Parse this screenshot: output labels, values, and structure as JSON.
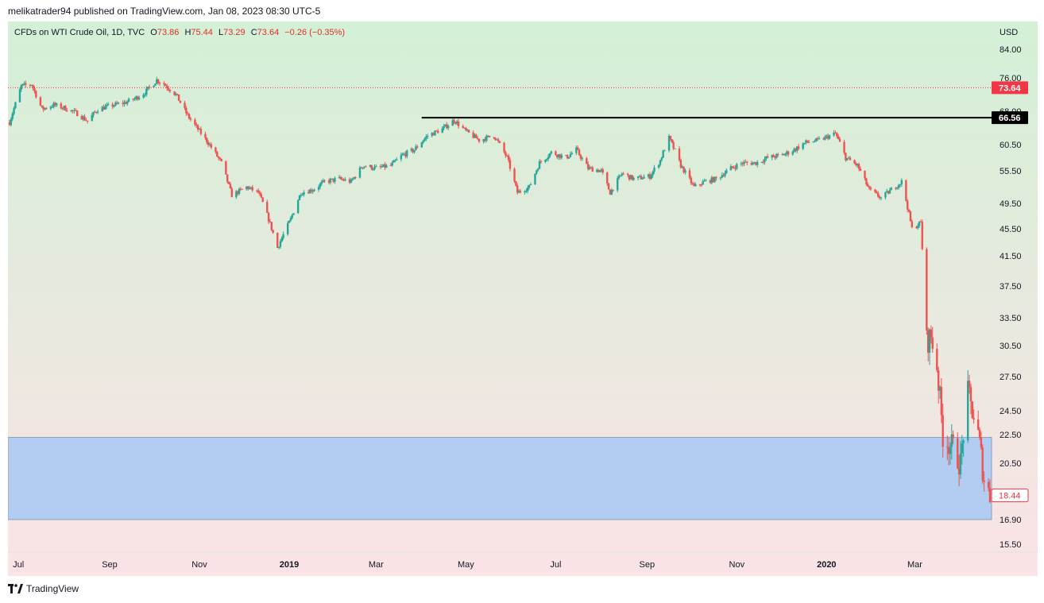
{
  "header": {
    "published_line": "melikatrader94 published on TradingView.com, Jan 08, 2023 08:30 UTC-5"
  },
  "legend": {
    "symbol": "CFDs on WTI Crude Oil, 1D, TVC",
    "open_label": "O",
    "open": "73.86",
    "high_label": "H",
    "high": "75.44",
    "low_label": "L",
    "low": "73.29",
    "close_label": "C",
    "close": "73.64",
    "change": "−0.26 (−0.35%)"
  },
  "footer": {
    "brand": "TradingView"
  },
  "colors": {
    "up": "#26a69a",
    "down": "#ef5350",
    "price_tag_red": "#f23645",
    "level_line": "#000000",
    "zone_fill": "#b3cdf2",
    "zone_border": "#7b8fb0",
    "bg_top": "#d3f0d6",
    "bg_bottom": "#fbe3e6"
  },
  "chart_data": {
    "type": "candlestick",
    "currency_label": "USD",
    "y_ticks": [
      84.0,
      76.0,
      68.0,
      60.5,
      55.5,
      49.5,
      45.5,
      41.5,
      37.5,
      33.5,
      30.5,
      27.5,
      24.5,
      22.5,
      20.5,
      16.9,
      15.5
    ],
    "y_tick_labels": [
      "84.00",
      "76.00",
      "68.00",
      "60.50",
      "55.50",
      "49.50",
      "45.50",
      "41.50",
      "37.50",
      "33.50",
      "30.50",
      "27.50",
      "24.50",
      "22.50",
      "20.50",
      "16.90",
      "15.50"
    ],
    "x_ticks": [
      {
        "label": "Jul",
        "bold": false
      },
      {
        "label": "Sep",
        "bold": false
      },
      {
        "label": "Nov",
        "bold": false
      },
      {
        "label": "2019",
        "bold": true
      },
      {
        "label": "Mar",
        "bold": false
      },
      {
        "label": "May",
        "bold": false
      },
      {
        "label": "Jul",
        "bold": false
      },
      {
        "label": "Sep",
        "bold": false
      },
      {
        "label": "Nov",
        "bold": false
      },
      {
        "label": "2020",
        "bold": true
      },
      {
        "label": "Mar",
        "bold": false
      }
    ],
    "x_tick_dates": [
      "2018-07-01",
      "2018-09-01",
      "2018-11-01",
      "2019-01-01",
      "2019-03-01",
      "2019-05-01",
      "2019-07-01",
      "2019-09-01",
      "2019-11-01",
      "2020-01-01",
      "2020-03-01"
    ],
    "date_range": [
      "2018-06-25",
      "2020-04-21"
    ],
    "price_series": [
      [
        "2018-06-25",
        65.5
      ],
      [
        "2018-07-03",
        74.0
      ],
      [
        "2018-07-10",
        74.5
      ],
      [
        "2018-07-17",
        68.5
      ],
      [
        "2018-07-25",
        69.5
      ],
      [
        "2018-08-01",
        68.8
      ],
      [
        "2018-08-10",
        67.5
      ],
      [
        "2018-08-17",
        65.8
      ],
      [
        "2018-08-24",
        68.5
      ],
      [
        "2018-09-04",
        69.5
      ],
      [
        "2018-09-11",
        70.0
      ],
      [
        "2018-09-18",
        71.0
      ],
      [
        "2018-09-25",
        72.5
      ],
      [
        "2018-10-03",
        75.5
      ],
      [
        "2018-10-08",
        74.5
      ],
      [
        "2018-10-16",
        72.0
      ],
      [
        "2018-10-24",
        67.0
      ],
      [
        "2018-11-01",
        63.5
      ],
      [
        "2018-11-09",
        60.0
      ],
      [
        "2018-11-16",
        57.0
      ],
      [
        "2018-11-23",
        51.0
      ],
      [
        "2018-12-03",
        52.5
      ],
      [
        "2018-12-11",
        51.5
      ],
      [
        "2018-12-18",
        47.0
      ],
      [
        "2018-12-24",
        42.7
      ],
      [
        "2019-01-02",
        47.0
      ],
      [
        "2019-01-09",
        51.5
      ],
      [
        "2019-01-17",
        52.0
      ],
      [
        "2019-01-25",
        53.5
      ],
      [
        "2019-02-04",
        54.0
      ],
      [
        "2019-02-12",
        53.5
      ],
      [
        "2019-02-20",
        56.5
      ],
      [
        "2019-03-01",
        56.0
      ],
      [
        "2019-03-11",
        56.5
      ],
      [
        "2019-03-19",
        58.5
      ],
      [
        "2019-03-27",
        59.5
      ],
      [
        "2019-04-05",
        62.5
      ],
      [
        "2019-04-15",
        64.0
      ],
      [
        "2019-04-23",
        66.0
      ],
      [
        "2019-05-01",
        63.5
      ],
      [
        "2019-05-10",
        61.5
      ],
      [
        "2019-05-20",
        62.5
      ],
      [
        "2019-05-29",
        58.0
      ],
      [
        "2019-06-05",
        51.5
      ],
      [
        "2019-06-13",
        52.5
      ],
      [
        "2019-06-20",
        57.0
      ],
      [
        "2019-06-28",
        59.0
      ],
      [
        "2019-07-08",
        58.0
      ],
      [
        "2019-07-15",
        59.5
      ],
      [
        "2019-07-23",
        56.0
      ],
      [
        "2019-08-01",
        55.5
      ],
      [
        "2019-08-07",
        51.5
      ],
      [
        "2019-08-15",
        55.0
      ],
      [
        "2019-08-23",
        54.0
      ],
      [
        "2019-09-03",
        54.5
      ],
      [
        "2019-09-10",
        57.5
      ],
      [
        "2019-09-16",
        62.0
      ],
      [
        "2019-09-24",
        56.5
      ],
      [
        "2019-10-03",
        52.5
      ],
      [
        "2019-10-10",
        53.5
      ],
      [
        "2019-10-18",
        54.0
      ],
      [
        "2019-10-28",
        56.0
      ],
      [
        "2019-11-05",
        57.0
      ],
      [
        "2019-11-14",
        57.0
      ],
      [
        "2019-11-22",
        58.0
      ],
      [
        "2019-12-02",
        58.5
      ],
      [
        "2019-12-10",
        59.5
      ],
      [
        "2019-12-18",
        61.0
      ],
      [
        "2019-12-27",
        61.5
      ],
      [
        "2020-01-07",
        63.0
      ],
      [
        "2020-01-14",
        58.0
      ],
      [
        "2020-01-22",
        56.5
      ],
      [
        "2020-01-30",
        52.0
      ],
      [
        "2020-02-07",
        50.5
      ],
      [
        "2020-02-14",
        52.0
      ],
      [
        "2020-02-21",
        53.5
      ],
      [
        "2020-02-28",
        45.5
      ],
      [
        "2020-03-05",
        46.5
      ],
      [
        "2020-03-09",
        31.0
      ],
      [
        "2020-03-12",
        31.5
      ],
      [
        "2020-03-16",
        28.5
      ],
      [
        "2020-03-20",
        22.5
      ],
      [
        "2020-03-27",
        21.5
      ],
      [
        "2020-04-01",
        20.5
      ],
      [
        "2020-04-06",
        26.0
      ],
      [
        "2020-04-13",
        22.5
      ],
      [
        "2020-04-17",
        19.5
      ],
      [
        "2020-04-21",
        18.44
      ]
    ],
    "last_price": 18.44,
    "last_price_label": "18.44",
    "horizontal_lines": [
      {
        "price": 73.64,
        "label": "73.64",
        "style": "dotted",
        "color": "#f23645"
      },
      {
        "price": 66.56,
        "label": "66.56",
        "style": "solid",
        "color": "#000000",
        "start_date": "2019-04-01"
      }
    ],
    "zone": {
      "top": 22.3,
      "bottom": 16.9,
      "color": "#b3cdf2"
    }
  }
}
